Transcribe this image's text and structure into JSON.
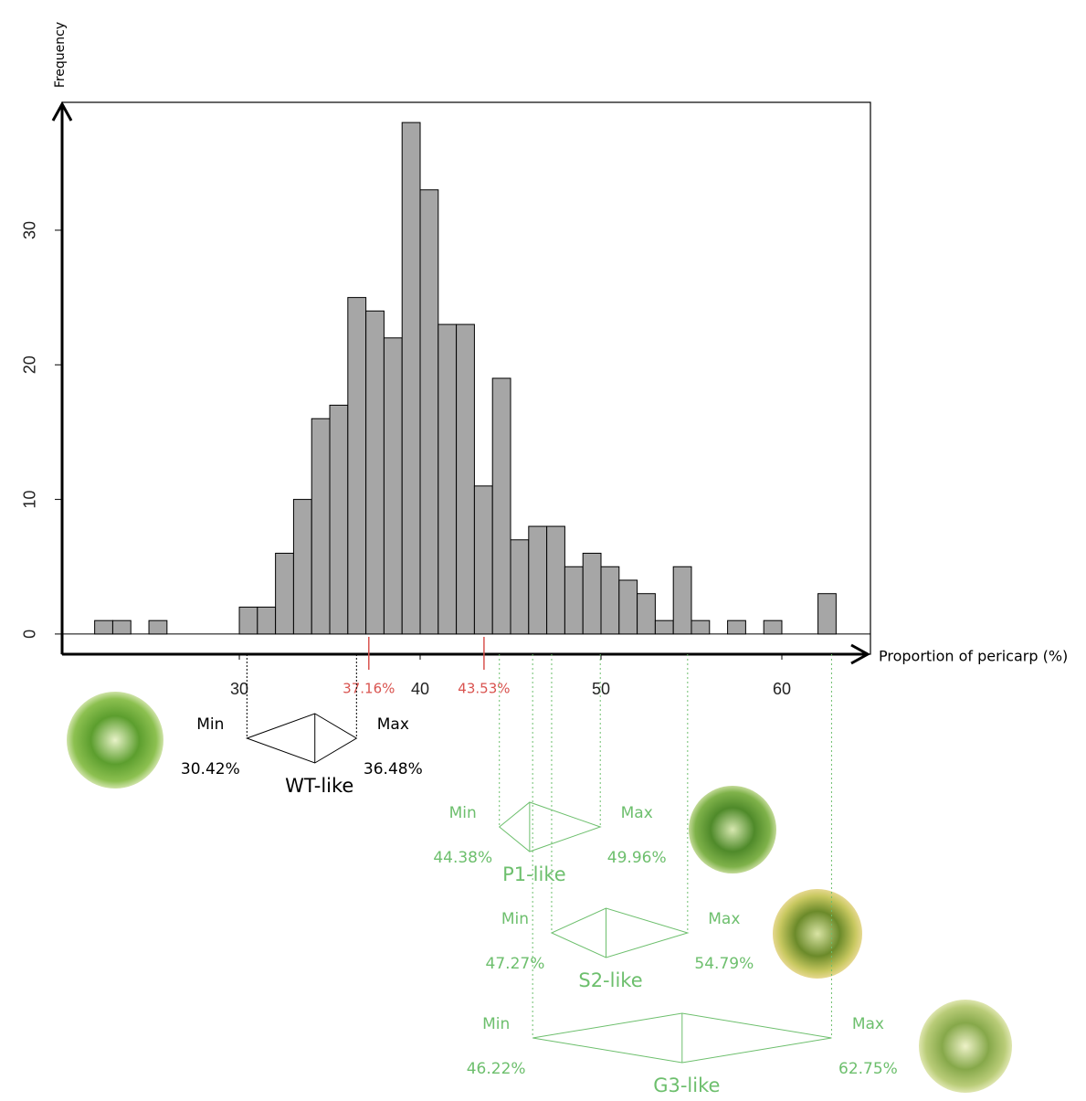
{
  "chart_data": {
    "type": "histogram",
    "y_label": "Frequency",
    "x_label": "Proportion of pericarp (%)",
    "bins": [
      22,
      23,
      24,
      25,
      26,
      27,
      28,
      29,
      30,
      31,
      32,
      33,
      34,
      35,
      36,
      37,
      38,
      39,
      40,
      41,
      42,
      43,
      44,
      45,
      46,
      47,
      48,
      49,
      50,
      51,
      52,
      53,
      54,
      55,
      56,
      57,
      58,
      59,
      60,
      61,
      62,
      63
    ],
    "counts": [
      1,
      1,
      0,
      1,
      0,
      0,
      0,
      0,
      2,
      2,
      6,
      10,
      16,
      17,
      25,
      24,
      22,
      38,
      33,
      23,
      23,
      11,
      19,
      7,
      8,
      8,
      5,
      6,
      5,
      4,
      3,
      1,
      5,
      1,
      0,
      1,
      0,
      1,
      0,
      0,
      3
    ],
    "color": "#a6a6a6",
    "xlim": [
      20.2,
      64.9
    ],
    "ylim": [
      -1.5,
      39.5
    ],
    "xticks": [
      30,
      40,
      50,
      60
    ],
    "yticks": [
      0,
      10,
      20,
      30
    ],
    "markers": {
      "values": [
        37.16,
        43.53
      ],
      "value_labels": [
        "37.16%",
        "43.53%"
      ],
      "color": "#d9534f"
    },
    "min_text": "Min",
    "max_text": "Max",
    "groups": [
      {
        "name": "WT-like",
        "color": "#000000",
        "min": 30.42,
        "max": 36.48,
        "min_label": "30.42%",
        "max_label": "36.48%"
      },
      {
        "name": "P1-like",
        "color": "#6dbf6d",
        "min": 44.38,
        "max": 49.96,
        "min_label": "44.38%",
        "max_label": "49.96%"
      },
      {
        "name": "S2-like",
        "color": "#6dbf6d",
        "min": 47.27,
        "max": 54.79,
        "min_label": "47.27%",
        "max_label": "54.79%"
      },
      {
        "name": "G3-like",
        "color": "#6dbf6d",
        "min": 46.22,
        "max": 62.75,
        "min_label": "46.22%",
        "max_label": "62.75%"
      }
    ]
  }
}
